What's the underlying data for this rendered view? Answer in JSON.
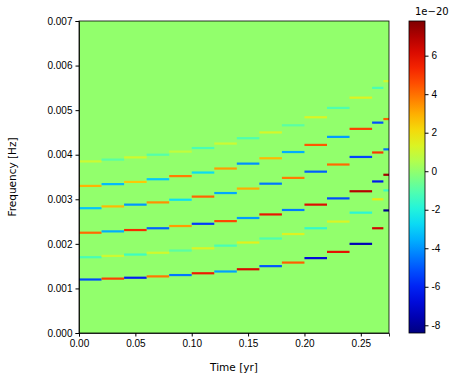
{
  "chart_data": {
    "type": "heatmap",
    "x_label": "Time [yr]",
    "y_label": "Frequency [Hz]",
    "xlim": [
      0,
      0.275
    ],
    "ylim": [
      0,
      0.007
    ],
    "xticks": [
      {
        "value": 0,
        "label": "0.00"
      },
      {
        "value": 0.05,
        "label": "0.05"
      },
      {
        "value": 0.1,
        "label": "0.10"
      },
      {
        "value": 0.15,
        "label": "0.15"
      },
      {
        "value": 0.2,
        "label": "0.20"
      },
      {
        "value": 0.25,
        "label": "0.25"
      }
    ],
    "yticks": [
      {
        "value": 0,
        "label": "0.000"
      },
      {
        "value": 0.001,
        "label": "0.001"
      },
      {
        "value": 0.002,
        "label": "0.002"
      },
      {
        "value": 0.003,
        "label": "0.003"
      },
      {
        "value": 0.004,
        "label": "0.004"
      },
      {
        "value": 0.005,
        "label": "0.005"
      },
      {
        "value": 0.006,
        "label": "0.006"
      },
      {
        "value": 0.007,
        "label": "0.007"
      }
    ],
    "color": "jet",
    "t_edges": [
      0,
      0.02,
      0.04,
      0.06,
      0.08,
      0.1,
      0.12,
      0.14,
      0.16,
      0.18,
      0.2,
      0.22,
      0.24,
      0.26,
      0.27,
      0.275
    ],
    "tracks": [
      {
        "f": [
          0.0012,
          0.00122,
          0.00124,
          0.00127,
          0.0013,
          0.00134,
          0.00138,
          0.00143,
          0.0015,
          0.00158,
          0.00168,
          0.00182,
          0.002,
          0.00235,
          0.00275
        ],
        "values": [
          -5.2,
          4.8,
          -6.1,
          3.9,
          -4.5,
          5.6,
          -3.8,
          6.2,
          -5.0,
          4.3,
          -6.8,
          5.9,
          -7.5,
          6.4,
          -8.1
        ]
      },
      {
        "f": [
          0.0017,
          0.00173,
          0.00176,
          0.0018,
          0.00185,
          0.0019,
          0.00196,
          0.00203,
          0.00212,
          0.00222,
          0.00235,
          0.0025,
          0.0027,
          0.003,
          0.0032
        ],
        "values": [
          -1.2,
          1.0,
          -1.4,
          1.1,
          -0.9,
          1.3,
          -1.2,
          1.5,
          -1.1,
          1.4,
          -1.6,
          1.3,
          -1.8,
          1.7,
          -1.5
        ]
      },
      {
        "f": [
          0.00225,
          0.00228,
          0.00231,
          0.00235,
          0.0024,
          0.00245,
          0.00251,
          0.00258,
          0.00266,
          0.00276,
          0.00288,
          0.00302,
          0.00318,
          0.0034,
          0.00355
        ],
        "values": [
          4.1,
          -3.6,
          5.2,
          -4.8,
          3.3,
          -5.5,
          4.7,
          -3.9,
          5.8,
          -4.4,
          6.1,
          -5.2,
          6.9,
          -6.3,
          7.2
        ]
      },
      {
        "f": [
          0.0028,
          0.00284,
          0.00288,
          0.00293,
          0.00299,
          0.00306,
          0.00314,
          0.00324,
          0.00335,
          0.00348,
          0.00362,
          0.00378,
          0.00395,
          0.00405,
          0.00412
        ],
        "values": [
          -3.2,
          2.8,
          -4.0,
          3.5,
          -2.6,
          4.2,
          -3.7,
          3.0,
          -4.5,
          3.8,
          -4.9,
          4.1,
          -5.3,
          5.0,
          -4.6
        ]
      },
      {
        "f": [
          0.0033,
          0.00334,
          0.00339,
          0.00345,
          0.00352,
          0.0036,
          0.00369,
          0.0038,
          0.00392,
          0.00406,
          0.00422,
          0.0044,
          0.00458,
          0.00472,
          0.0048
        ],
        "values": [
          2.9,
          -3.4,
          2.5,
          -3.1,
          3.8,
          -2.7,
          3.3,
          -4.1,
          2.8,
          -3.6,
          4.4,
          -3.9,
          4.8,
          -5.1,
          4.3
        ]
      },
      {
        "f": [
          0.00385,
          0.00389,
          0.00394,
          0.004,
          0.00407,
          0.00415,
          0.00425,
          0.00437,
          0.0045,
          0.00466,
          0.00484,
          0.00505,
          0.00528,
          0.0055,
          0.00565
        ],
        "values": [
          1.0,
          -0.9,
          1.1,
          -1.0,
          0.8,
          -1.2,
          1.0,
          -1.1,
          1.2,
          -0.9,
          1.3,
          -1.1,
          1.4,
          -1.2,
          1.1
        ]
      }
    ],
    "colorbar": {
      "range": [
        -8.4,
        7.8
      ],
      "ticks": [
        -8,
        -6,
        -4,
        -2,
        0,
        2,
        4,
        6
      ],
      "offset_label": "1e−20"
    }
  }
}
